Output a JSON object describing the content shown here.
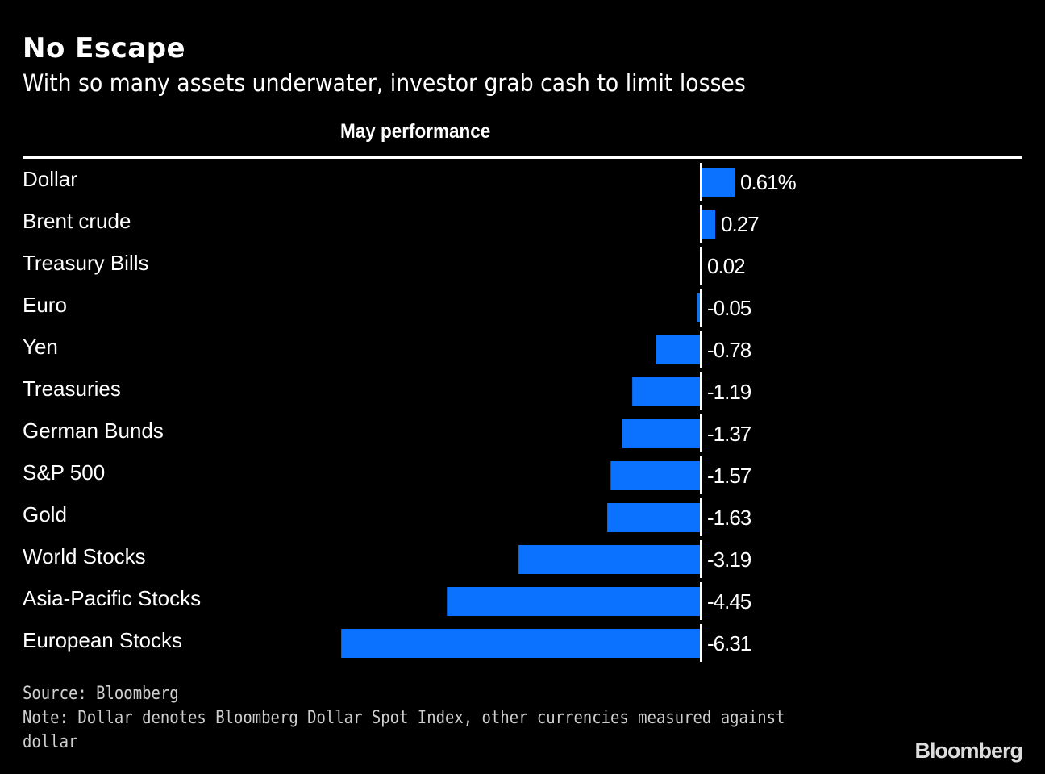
{
  "chart_data": {
    "type": "bar",
    "orientation": "horizontal",
    "title": "No Escape",
    "subtitle": "With so many assets underwater, investor grab cash to limit losses",
    "xlabel": "May performance",
    "ylabel": "",
    "unit": "%",
    "categories": [
      "Dollar",
      "Brent crude",
      "Treasury Bills",
      "Euro",
      "Yen",
      "Treasuries",
      "German Bunds",
      "S&P 500",
      "Gold",
      "World Stocks",
      "Asia-Pacific Stocks",
      "European Stocks"
    ],
    "values": [
      0.61,
      0.27,
      0.02,
      -0.05,
      -0.78,
      -1.19,
      -1.37,
      -1.57,
      -1.63,
      -3.19,
      -4.45,
      -6.31
    ],
    "value_labels": [
      "0.61%",
      "0.27",
      "0.02",
      "-0.05",
      "-0.78",
      "-1.19",
      "-1.37",
      "-1.57",
      "-1.63",
      "-3.19",
      "-4.45",
      "-6.31"
    ],
    "xlim": [
      -6.31,
      0.61
    ],
    "grid": false,
    "legend": "none",
    "bar_color": "#0a72ff"
  },
  "footer": {
    "source": "Source: Bloomberg",
    "note": "Note: Dollar denotes Bloomberg Dollar Spot Index, other currencies measured against dollar"
  },
  "brand": "Bloomberg"
}
